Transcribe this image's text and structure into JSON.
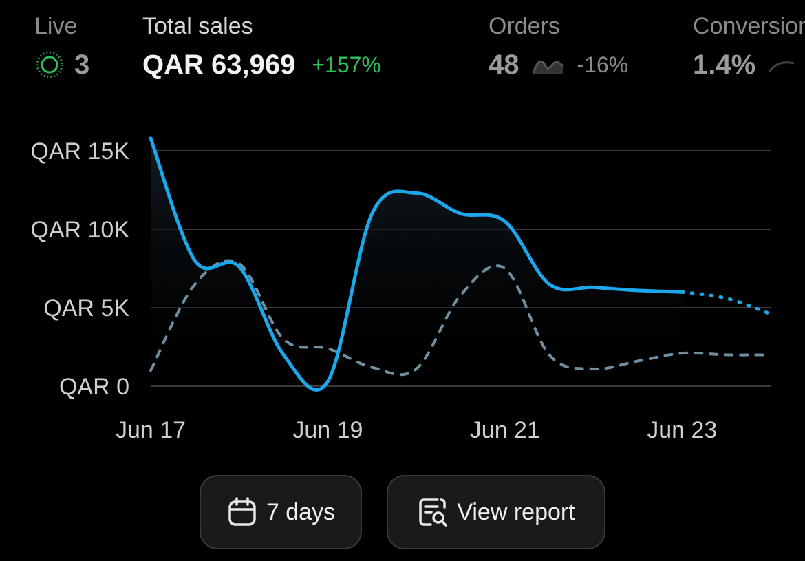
{
  "metrics": {
    "live": {
      "label": "Live",
      "value": "3"
    },
    "total_sales": {
      "label": "Total sales",
      "value": "QAR 63,969",
      "change": "+157%"
    },
    "orders": {
      "label": "Orders",
      "value": "48",
      "change": "-16%"
    },
    "conversion": {
      "label": "Conversion",
      "value": "1.4%"
    }
  },
  "buttons": {
    "days_label": "7 days",
    "report_label": "View report"
  },
  "colors": {
    "current_series": "#1aa7ec",
    "comparison_series": "#6f8fa0",
    "positive_change": "#2fbf5a"
  },
  "chart_data": {
    "type": "line",
    "x_labels": [
      "Jun 17",
      "Jun 19",
      "Jun 21",
      "Jun 23"
    ],
    "y_ticks": [
      "QAR 0",
      "QAR 5K",
      "QAR 10K",
      "QAR 15K"
    ],
    "ylim": [
      0,
      15000
    ],
    "grid": true,
    "series": [
      {
        "style": "solid",
        "x": [
          0,
          0.5,
          1,
          1.5,
          2,
          2.5,
          3,
          3.5,
          4,
          4.5,
          5,
          5.5,
          6,
          6.5,
          7
        ],
        "y": [
          15800,
          8000,
          7600,
          2000,
          300,
          11000,
          12300,
          11000,
          10500,
          6500,
          6300,
          6100,
          6000,
          5600,
          4600
        ],
        "projected_from_x": 6
      },
      {
        "style": "dashed",
        "x": [
          0,
          0.5,
          1,
          1.5,
          2,
          2.5,
          3,
          3.5,
          4,
          4.5,
          5,
          5.5,
          6,
          6.5,
          7
        ],
        "y": [
          1000,
          6500,
          7800,
          3000,
          2400,
          1200,
          1100,
          5800,
          7500,
          2000,
          1100,
          1600,
          2100,
          2000,
          2000
        ]
      }
    ]
  }
}
